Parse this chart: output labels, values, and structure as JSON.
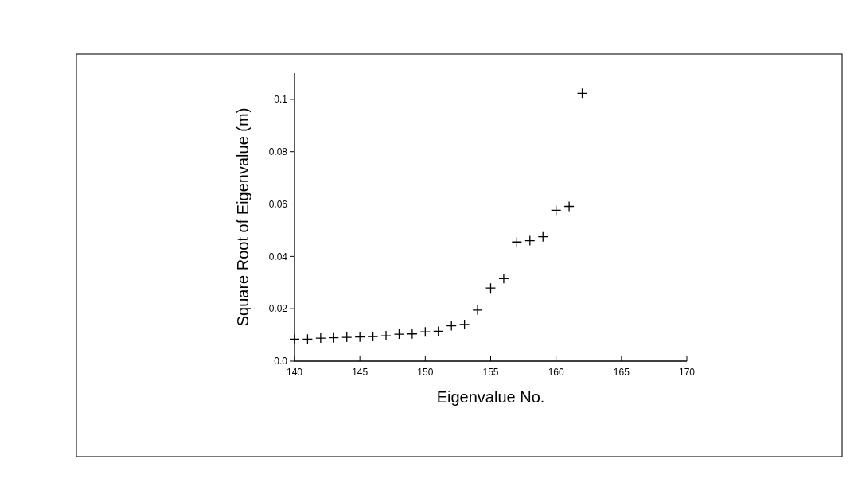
{
  "chart_data": {
    "type": "scatter",
    "xlabel": "Eigenvalue No.",
    "ylabel": "Square Root of Eigenvalue (m)",
    "x": [
      140,
      141,
      142,
      143,
      144,
      145,
      146,
      147,
      148,
      149,
      150,
      151,
      152,
      153,
      154,
      155,
      156,
      157,
      158,
      159,
      160,
      161,
      162
    ],
    "series": [
      {
        "color": "#000000",
        "values": [
          0.0084,
          0.0084,
          0.0088,
          0.0089,
          0.0091,
          0.0092,
          0.0094,
          0.0097,
          0.0103,
          0.0104,
          0.0112,
          0.0114,
          0.0135,
          0.014,
          0.0195,
          0.0279,
          0.0315,
          0.0455,
          0.046,
          0.0475,
          0.0576,
          0.0591,
          0.1023
        ]
      }
    ],
    "xlim": [
      140,
      170
    ],
    "xticks": [
      140,
      145,
      150,
      155,
      160,
      165,
      170
    ],
    "ylim": [
      0,
      0.11
    ],
    "yticks": [
      {
        "value": 0,
        "label": "0.0"
      },
      0.02,
      0.04,
      0.06,
      0.08,
      {
        "value": 0.1,
        "label": "0.1"
      }
    ],
    "marker": "cross",
    "grid": false
  }
}
